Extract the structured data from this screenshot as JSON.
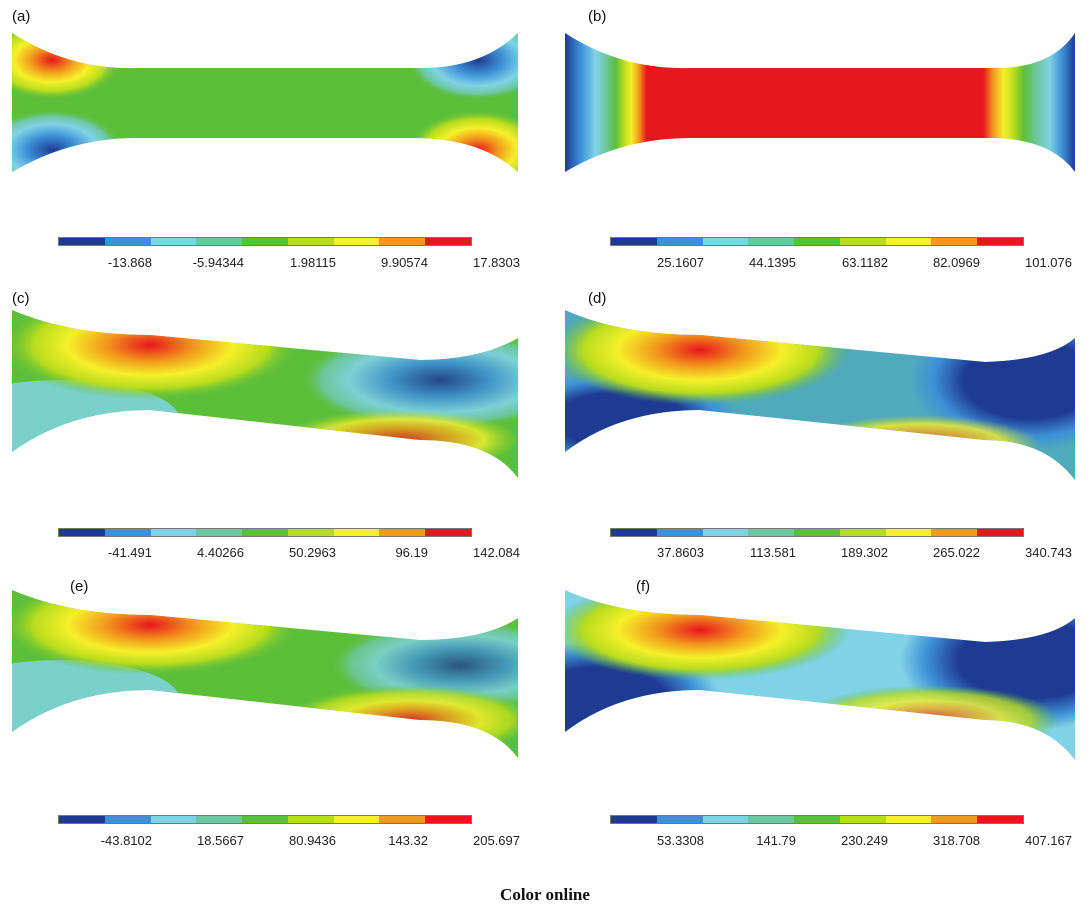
{
  "panels": [
    {
      "label": "(a)",
      "ticks": [
        "-13.868",
        "-5.94344",
        "1.98115",
        "9.90574",
        "17.8303"
      ]
    },
    {
      "label": "(b)",
      "ticks": [
        "25.1607",
        "44.1395",
        "63.1182",
        "82.0969",
        "101.076"
      ]
    },
    {
      "label": "(c)",
      "ticks": [
        "-41.491",
        "4.40266",
        "50.2963",
        "96.19",
        "142.084"
      ]
    },
    {
      "label": "(d)",
      "ticks": [
        "37.8603",
        "113.581",
        "189.302",
        "265.022",
        "340.743"
      ]
    },
    {
      "label": "(e)",
      "ticks": [
        "-43.8102",
        "18.5667",
        "80.9436",
        "143.32",
        "205.697"
      ]
    },
    {
      "label": "(f)",
      "ticks": [
        "53.3308",
        "141.79",
        "230.249",
        "318.708",
        "407.167"
      ]
    }
  ],
  "colormap": [
    "#1f3a93",
    "#3d8fd6",
    "#7fd3e6",
    "#6cc7a0",
    "#5cbf3a",
    "#b8dc1e",
    "#f5f02a",
    "#f29a1c",
    "#e8161e"
  ],
  "caption": "Color online"
}
